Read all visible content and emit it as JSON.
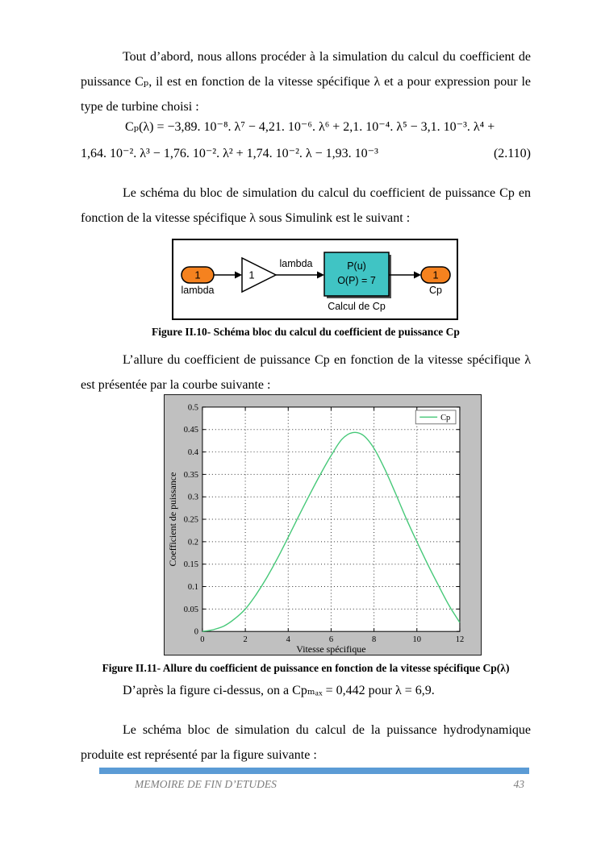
{
  "paragraphs": {
    "p1": "Tout d’abord, nous allons procéder à la simulation du calcul du coefficient de puissance Cₚ, il est en fonction de la vitesse spécifique λ et a pour expression pour le type de turbine choisi :",
    "p2": "Le schéma du bloc de simulation du calcul du coefficient de puissance Cp en fonction de la vitesse spécifique λ sous Simulink est le suivant :",
    "p3": "L’allure du coefficient de puissance Cp en fonction de la vitesse spécifique λ est présentée par la courbe suivante :",
    "p4": "D’après la figure ci-dessus, on a Cpₘₐₓ = 0,442 pour λ = 6,9.",
    "p5": "Le schéma bloc de simulation du calcul de la puissance hydrodynamique produite est représenté par la figure suivante :"
  },
  "equation": {
    "line1": "Cₚ(λ) = −3,89. 10⁻⁸. λ⁷ − 4,21. 10⁻⁶. λ⁶ + 2,1. 10⁻⁴. λ⁵ − 3,1. 10⁻³. λ⁴ +",
    "line2": "1,64. 10⁻². λ³ − 1,76. 10⁻². λ² + 1,74. 10⁻². λ − 1,93. 10⁻³",
    "number": "(2.110)"
  },
  "figures": {
    "fig10_caption": "Figure II.10- Schéma bloc du calcul du coefficient de puissance Cp",
    "fig11_caption": "Figure II.11- Allure du coefficient de puissance  en fonction de la vitesse spécifique Cp(λ)"
  },
  "diagram": {
    "input_port_value": "1",
    "input_port_label": "lambda",
    "gain_value": "1",
    "signal_label": "lambda",
    "block_line1": "P(u)",
    "block_line2": "O(P) = 7",
    "block_label": "Calcul de Cp",
    "output_port_value": "1",
    "output_port_label": "Cp",
    "colors": {
      "port": "#f5821f",
      "block": "#40c4c4"
    }
  },
  "chart_data": {
    "type": "line",
    "title": "",
    "xlabel": "Vitesse spécifique",
    "ylabel": "Coefficient de puissance",
    "xlim": [
      0,
      12
    ],
    "ylim": [
      0,
      0.5
    ],
    "xticks": [
      0,
      2,
      4,
      6,
      8,
      10,
      12
    ],
    "xtick_labels": [
      "0",
      "2",
      "4",
      "6",
      "8",
      "10",
      "12"
    ],
    "yticks": [
      0,
      0.05,
      0.1,
      0.15,
      0.2,
      0.25,
      0.3,
      0.35,
      0.4,
      0.45,
      0.5
    ],
    "ytick_labels": [
      "0",
      "0.05",
      "0.1",
      "0.15",
      "0.2",
      "0.25",
      "0.3",
      "0.35",
      "0.4",
      "0.45",
      "0.5"
    ],
    "grid": true,
    "legend": {
      "position": "top-right",
      "entries": [
        "Cp"
      ]
    },
    "line_color": "#46c878",
    "background": "#c0c0c0",
    "series": [
      {
        "name": "Cp",
        "x": [
          0,
          0.5,
          1,
          1.5,
          2,
          2.5,
          3,
          3.5,
          4,
          4.5,
          5,
          5.5,
          6,
          6.5,
          7,
          7.5,
          8,
          8.5,
          9,
          9.5,
          10,
          10.5,
          11,
          11.5,
          12
        ],
        "y": [
          0,
          0.004,
          0.012,
          0.028,
          0.05,
          0.082,
          0.12,
          0.163,
          0.21,
          0.258,
          0.305,
          0.35,
          0.392,
          0.428,
          0.443,
          0.437,
          0.408,
          0.362,
          0.308,
          0.252,
          0.2,
          0.15,
          0.103,
          0.058,
          0.02
        ]
      }
    ],
    "peak": {
      "x": 6.9,
      "y": 0.442
    }
  },
  "footer": {
    "text": "MEMOIRE DE FIN D’ETUDES",
    "page_number": "43",
    "bar_color": "#5b9bd5"
  }
}
